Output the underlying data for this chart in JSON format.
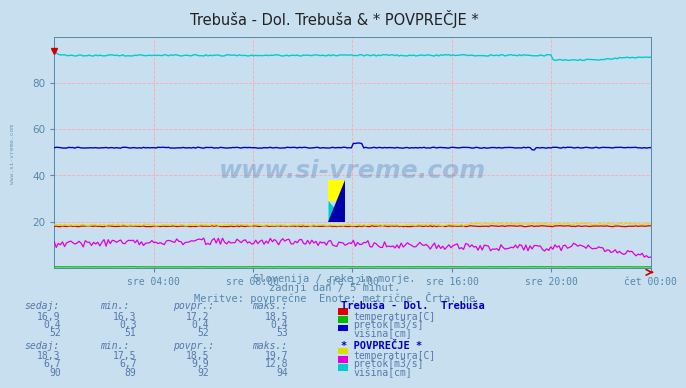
{
  "title": "Trebuša - Dol. Trebuša & * POVPREČJE *",
  "bg_color": "#c8dff0",
  "plot_bg_color": "#c8dff0",
  "grid_color": "#ffaaaa",
  "axis_color": "#5588aa",
  "text_color": "#5588aa",
  "xlabel_ticks": [
    "sre 04:00",
    "sre 08:00",
    "sre 12:00",
    "sre 16:00",
    "sre 20:00",
    "čet 00:00"
  ],
  "x_tick_positions": [
    0.167,
    0.333,
    0.5,
    0.667,
    0.833,
    1.0
  ],
  "ylim": [
    0,
    100
  ],
  "yticks": [
    20,
    40,
    60,
    80
  ],
  "subtitle1": "Slovenija / reke in morje.",
  "subtitle2": "zadnji dan / 5 minut.",
  "subtitle3": "Meritve: povprečne  Enote: metrične  Črta: ne",
  "n_points": 288,
  "watermark": "www.si-vreme.com",
  "table_text_color": "#5577aa",
  "table_bold_color": "#0000bb",
  "table1_title": "Trebuša - Dol.  Trebuša",
  "table1_headers": [
    "sedaj:",
    "min.:",
    "povpr.:",
    "maks.:"
  ],
  "table1_rows": [
    {
      "sedaj": "16,9",
      "min": "16,3",
      "povpr": "17,2",
      "maks": "18,5",
      "label": "temperatura[C]",
      "color": "#dd0000"
    },
    {
      "sedaj": "0,4",
      "min": "0,3",
      "povpr": "0,4",
      "maks": "0,4",
      "label": "pretok[m3/s]",
      "color": "#00bb00"
    },
    {
      "sedaj": "52",
      "min": "51",
      "povpr": "52",
      "maks": "53",
      "label": "višina[cm]",
      "color": "#0000cc"
    }
  ],
  "table2_title": "* POVPREČJE *",
  "table2_rows": [
    {
      "sedaj": "18,3",
      "min": "17,5",
      "povpr": "18,5",
      "maks": "19,7",
      "label": "temperatura[C]",
      "color": "#dddd00"
    },
    {
      "sedaj": "6,7",
      "min": "6,7",
      "povpr": "9,9",
      "maks": "12,8",
      "label": "pretok[m3/s]",
      "color": "#dd00dd"
    },
    {
      "sedaj": "90",
      "min": "89",
      "povpr": "92",
      "maks": "94",
      "label": "višina[cm]",
      "color": "#00cccc"
    }
  ]
}
